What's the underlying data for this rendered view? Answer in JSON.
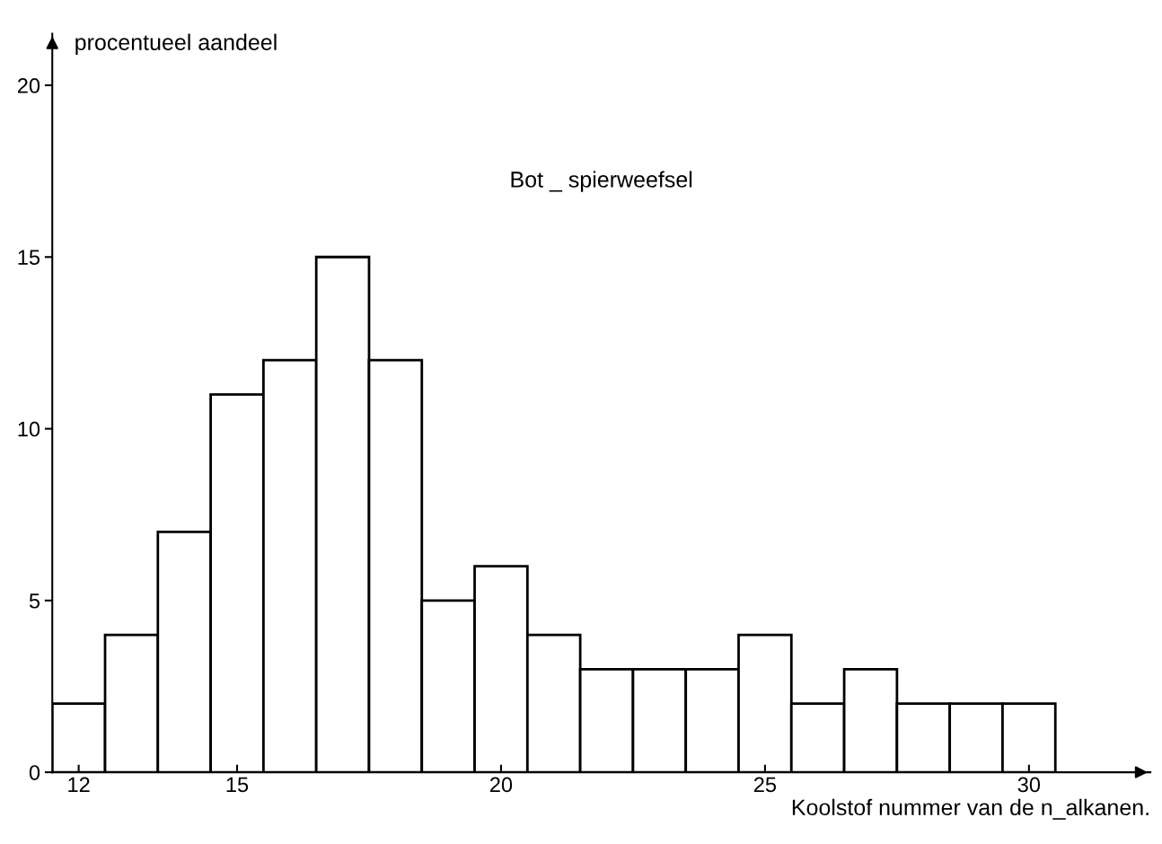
{
  "chart_data": {
    "type": "bar",
    "title": "Bot _ spierweefsel",
    "xlabel": "Koolstof nummer van de n_alkanen.",
    "ylabel": "procentueel aandeel",
    "x": [
      12,
      13,
      14,
      15,
      16,
      17,
      18,
      19,
      20,
      21,
      22,
      23,
      24,
      25,
      26,
      27,
      28,
      29,
      30
    ],
    "values": [
      2,
      4,
      7,
      11,
      12,
      15,
      12,
      5,
      6,
      4,
      3,
      3,
      3,
      4,
      2,
      3,
      2,
      2,
      2
    ],
    "color": "#ffffff",
    "xlim": [
      11.5,
      32.3
    ],
    "xticks": [
      12,
      15,
      20,
      25,
      30
    ],
    "ylim": [
      0,
      21.5
    ],
    "yticks": [
      0,
      5,
      10,
      15,
      20
    ],
    "grid": false
  }
}
